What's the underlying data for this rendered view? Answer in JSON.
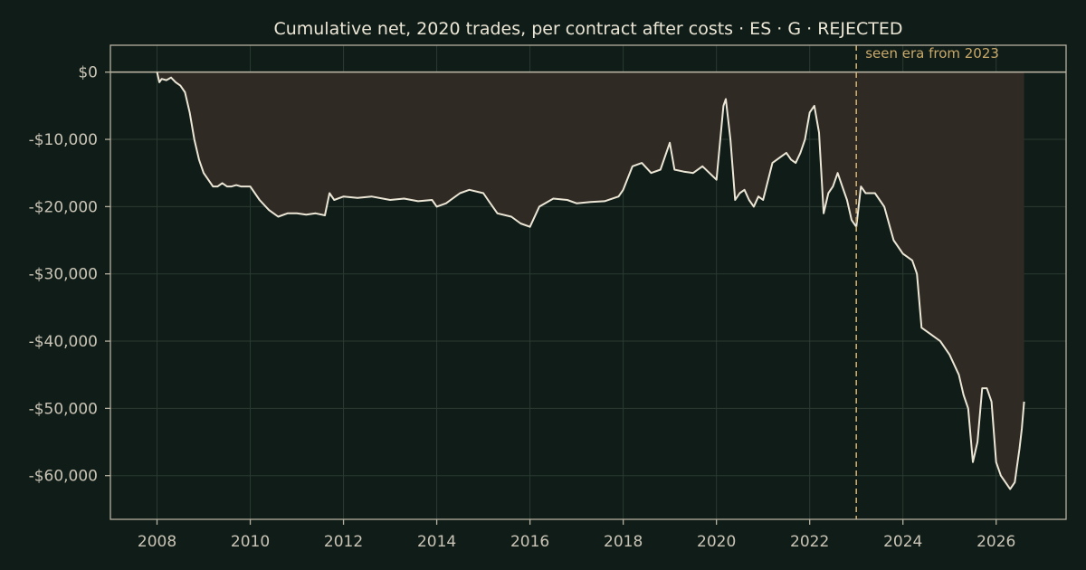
{
  "chart_data": {
    "type": "area",
    "title": "Cumulative net, 2020 trades, per contract after costs  ·  ES · G · REJECTED",
    "xlabel": "",
    "ylabel": "",
    "xlim": [
      2007.0,
      2027.5
    ],
    "ylim": [
      -66500,
      4000
    ],
    "x_ticks": [
      2008,
      2010,
      2012,
      2014,
      2016,
      2018,
      2020,
      2022,
      2024,
      2026
    ],
    "y_ticks": [
      0,
      -10000,
      -20000,
      -30000,
      -40000,
      -50000,
      -60000
    ],
    "x_tick_labels": [
      "2008",
      "2010",
      "2012",
      "2014",
      "2016",
      "2018",
      "2020",
      "2022",
      "2024",
      "2026"
    ],
    "y_tick_labels": [
      "$0",
      "-$10,000",
      "-$20,000",
      "-$30,000",
      "-$40,000",
      "-$50,000",
      "-$60,000"
    ],
    "grid": true,
    "annotation": {
      "x": 2023.0,
      "label": "seen era from 2023",
      "style": "dashed vertical line"
    },
    "fill_to_zero": true,
    "series": [
      {
        "x": [
          2008.0,
          2008.05,
          2008.1,
          2008.2,
          2008.3,
          2008.4,
          2008.5,
          2008.6,
          2008.7,
          2008.8,
          2008.9,
          2009.0,
          2009.1,
          2009.2,
          2009.3,
          2009.4,
          2009.5,
          2009.6,
          2009.7,
          2009.8,
          2010.0,
          2010.2,
          2010.4,
          2010.5,
          2010.6,
          2010.8,
          2011.0,
          2011.2,
          2011.4,
          2011.6,
          2011.7,
          2011.8,
          2012.0,
          2012.3,
          2012.6,
          2013.0,
          2013.3,
          2013.6,
          2013.9,
          2014.0,
          2014.2,
          2014.5,
          2014.7,
          2015.0,
          2015.1,
          2015.3,
          2015.6,
          2015.8,
          2016.0,
          2016.2,
          2016.5,
          2016.8,
          2017.0,
          2017.3,
          2017.6,
          2017.9,
          2018.0,
          2018.2,
          2018.4,
          2018.6,
          2018.8,
          2019.0,
          2019.1,
          2019.3,
          2019.5,
          2019.7,
          2020.0,
          2020.15,
          2020.2,
          2020.3,
          2020.4,
          2020.5,
          2020.6,
          2020.7,
          2020.8,
          2020.9,
          2021.0,
          2021.2,
          2021.4,
          2021.5,
          2021.6,
          2021.7,
          2021.8,
          2021.9,
          2022.0,
          2022.1,
          2022.2,
          2022.3,
          2022.4,
          2022.5,
          2022.6,
          2022.7,
          2022.8,
          2022.9,
          2023.0,
          2023.1,
          2023.2,
          2023.4,
          2023.6,
          2023.8,
          2024.0,
          2024.2,
          2024.3,
          2024.4,
          2024.6,
          2024.8,
          2025.0,
          2025.2,
          2025.3,
          2025.4,
          2025.5,
          2025.6,
          2025.7,
          2025.8,
          2025.9,
          2026.0,
          2026.1,
          2026.2,
          2026.3,
          2026.4,
          2026.5,
          2026.55,
          2026.6
        ],
        "y": [
          0,
          -1500,
          -1000,
          -1200,
          -800,
          -1500,
          -2000,
          -3000,
          -6000,
          -10000,
          -13000,
          -15000,
          -16000,
          -17000,
          -17000,
          -16500,
          -17000,
          -17000,
          -16800,
          -17000,
          -17000,
          -19000,
          -20500,
          -21000,
          -21500,
          -21000,
          -21000,
          -21200,
          -21000,
          -21300,
          -18000,
          -19000,
          -18500,
          -18700,
          -18500,
          -19000,
          -18800,
          -19200,
          -19000,
          -20000,
          -19500,
          -18000,
          -17500,
          -18000,
          -19000,
          -21000,
          -21500,
          -22500,
          -23000,
          -20000,
          -18800,
          -19000,
          -19500,
          -19300,
          -19200,
          -18500,
          -17500,
          -14000,
          -13500,
          -15000,
          -14500,
          -10500,
          -14500,
          -14800,
          -15000,
          -14000,
          -16000,
          -5000,
          -4000,
          -10000,
          -19000,
          -18000,
          -17500,
          -19000,
          -20000,
          -18500,
          -19000,
          -13500,
          -12500,
          -12000,
          -13000,
          -13500,
          -12000,
          -10000,
          -6000,
          -5000,
          -9000,
          -21000,
          -18000,
          -17000,
          -15000,
          -17000,
          -19000,
          -22000,
          -23000,
          -17000,
          -18000,
          -18000,
          -20000,
          -25000,
          -27000,
          -28000,
          -30000,
          -38000,
          -39000,
          -40000,
          -42000,
          -45000,
          -48000,
          -50000,
          -58000,
          -55000,
          -47000,
          -47000,
          -49000,
          -58000,
          -60000,
          -61000,
          -62000,
          -61000,
          -56000,
          -53000,
          -49000
        ]
      }
    ]
  }
}
